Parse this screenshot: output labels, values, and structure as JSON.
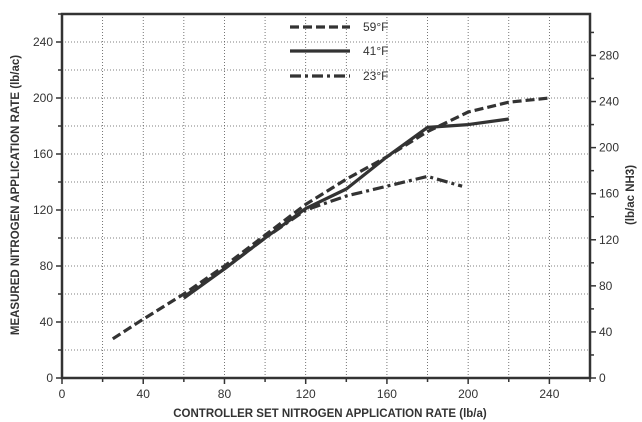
{
  "chart_data": {
    "type": "line",
    "xlabel": "CONTROLLER SET NITROGEN APPLICATION RATE (lb/a)",
    "ylabel": "MEASURED NITROGEN APPLICATION RATE (lb/ac)",
    "y2label": "(lb/ac NH3)",
    "xlim": [
      0,
      260
    ],
    "ylim": [
      0,
      260
    ],
    "y2lim": [
      0,
      316
    ],
    "x_ticks": [
      0,
      40,
      80,
      120,
      160,
      200,
      240
    ],
    "y_ticks": [
      0,
      40,
      80,
      120,
      160,
      200,
      240
    ],
    "y2_ticks": [
      0,
      40,
      80,
      120,
      160,
      200,
      240,
      280
    ],
    "grid": true,
    "legend_position": "top-center",
    "series": [
      {
        "name": "59°F",
        "style": "dashed",
        "x": [
          25,
          40,
          60,
          80,
          100,
          120,
          140,
          160,
          180,
          200,
          220,
          240
        ],
        "y": [
          28,
          42,
          60,
          80,
          102,
          124,
          142,
          158,
          176,
          190,
          197,
          200
        ]
      },
      {
        "name": "41°F",
        "style": "solid",
        "x": [
          60,
          80,
          100,
          120,
          140,
          160,
          180,
          200,
          220
        ],
        "y": [
          57,
          78,
          100,
          121,
          135,
          158,
          179,
          181,
          185
        ]
      },
      {
        "name": "23°F",
        "style": "dashdot",
        "x": [
          60,
          80,
          100,
          120,
          140,
          160,
          180,
          197
        ],
        "y": [
          58,
          78,
          100,
          120,
          130,
          137,
          144,
          137
        ]
      }
    ],
    "line_color": "#333333"
  }
}
